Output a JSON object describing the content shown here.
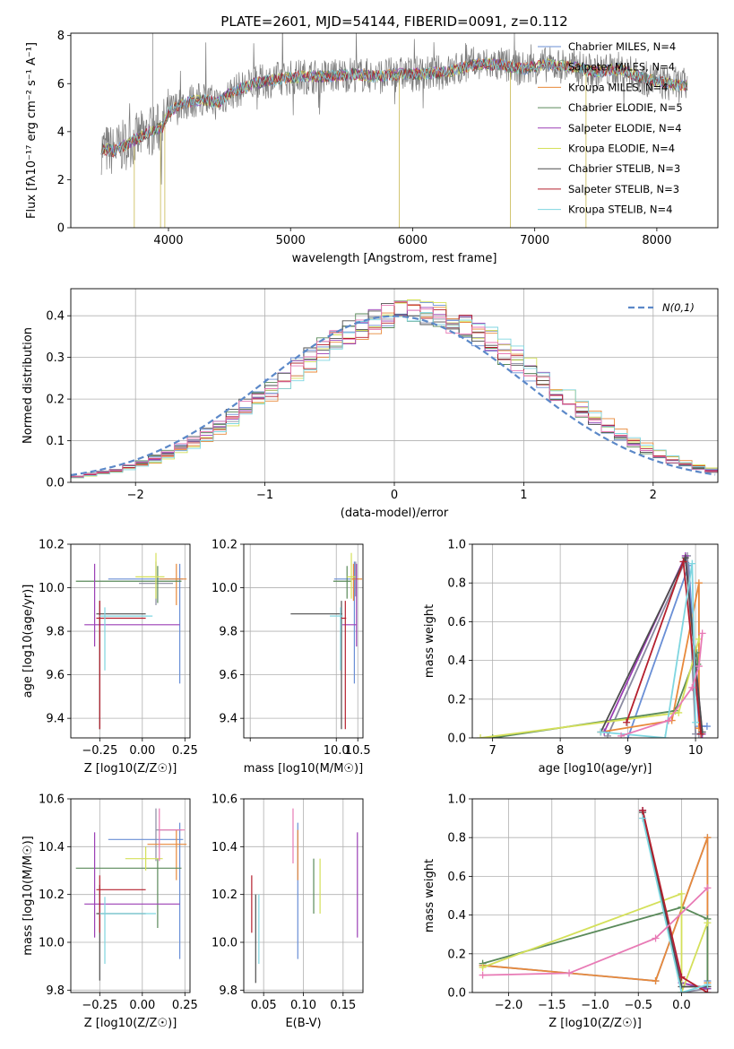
{
  "figure_title": "PLATE=2601, MJD=54144, FIBERID=0091, z=0.112",
  "model_colors": [
    "#6a8fd6",
    "#8a8aa0",
    "#e8893a",
    "#5a8a5a",
    "#9b3fb5",
    "#d4e05a",
    "#4d4d4d",
    "#b5202e",
    "#7fd6e0"
  ],
  "chart_data": [
    {
      "id": "spectrum",
      "type": "line",
      "title": "PLATE=2601, MJD=54144, FIBERID=0091, z=0.112",
      "xlabel": "wavelength [Angstrom, rest frame]",
      "ylabel": "Flux [fλ10⁻¹⁷ erg cm⁻² s⁻¹ A⁻¹]",
      "xlim": [
        3200,
        8500
      ],
      "ylim": [
        0,
        8.1
      ],
      "xticks": [
        4000,
        5000,
        6000,
        7000,
        8000
      ],
      "yticks": [
        0,
        2,
        4,
        6,
        8
      ],
      "grid": false,
      "legend_position": "upper-right",
      "series": [
        {
          "name": "Chabrier MILES, N_SSP=4",
          "color": "#6a8fd6"
        },
        {
          "name": "Salpeter MILES, N_SSP=4",
          "color": "#8a8aa0"
        },
        {
          "name": "Kroupa MILES, N_SSP=4",
          "color": "#e8893a"
        },
        {
          "name": "Chabrier ELODIE, N_SSP=5",
          "color": "#5a8a5a"
        },
        {
          "name": "Salpeter ELODIE, N_SSP=4",
          "color": "#9b3fb5"
        },
        {
          "name": "Kroupa ELODIE, N_SSP=4",
          "color": "#d4e05a"
        },
        {
          "name": "Chabrier STELIB, N_SSP=3",
          "color": "#4d4d4d"
        },
        {
          "name": "Salpeter STELIB, N_SSP=3",
          "color": "#b5202e"
        },
        {
          "name": "Kroupa STELIB, N_SSP=4",
          "color": "#7fd6e0"
        }
      ],
      "model_continuum": {
        "x": [
          3450,
          3550,
          3700,
          3850,
          3950,
          4000,
          4100,
          4200,
          4300,
          4400,
          4500,
          4700,
          4900,
          5100,
          5300,
          5500,
          5700,
          5900,
          6100,
          6300,
          6500,
          6700,
          6900,
          7100,
          7300,
          7500,
          7700,
          7900,
          8100,
          8250
        ],
        "y": [
          3.3,
          3.2,
          3.6,
          4.0,
          4.2,
          4.8,
          5.1,
          5.3,
          5.3,
          5.2,
          5.6,
          6.0,
          6.2,
          6.3,
          6.3,
          6.4,
          6.3,
          6.4,
          6.4,
          6.5,
          6.8,
          6.8,
          6.6,
          6.8,
          6.7,
          6.5,
          6.6,
          6.2,
          6.0,
          5.9
        ]
      }
    },
    {
      "id": "residuals",
      "type": "histogram",
      "xlabel": "(data-model)/error",
      "ylabel": "Normed distribution",
      "xlim": [
        -2.5,
        2.5
      ],
      "ylim": [
        0,
        0.465
      ],
      "xticks": [
        -2,
        -1,
        0,
        1,
        2
      ],
      "yticks": [
        0.0,
        0.1,
        0.2,
        0.3,
        0.4
      ],
      "grid": true,
      "legend_position": "upper-right",
      "legend_label": "N(0,1)",
      "normal_curve": {
        "mean": 0,
        "sigma": 1,
        "style": "dashed",
        "color": "#5b88c8"
      },
      "bin_width": 0.1
    },
    {
      "id": "age_vs_Z",
      "type": "errorbar",
      "xlabel": "Z [log10(Z/Z☉)]",
      "ylabel": "age [log10(age/yr)]",
      "xlim": [
        -0.42,
        0.28
      ],
      "ylim": [
        9.31,
        10.2
      ],
      "xticks": [
        -0.25,
        0.0,
        0.25
      ],
      "yticks": [
        9.4,
        9.6,
        9.8,
        10.0,
        10.2
      ],
      "grid": true,
      "points": [
        {
          "model": 0,
          "x": 0.22,
          "y": 10.04,
          "xerr": [
            0.42,
            0.02
          ],
          "yerr": [
            0.48,
            0.07
          ]
        },
        {
          "model": 1,
          "x": 0.08,
          "y": 10.02,
          "xerr": [
            0.1,
            0.1
          ],
          "yerr": [
            0.1,
            0.1
          ]
        },
        {
          "model": 2,
          "x": 0.2,
          "y": 10.04,
          "xerr": [
            0.1,
            0.06
          ],
          "yerr": [
            0.12,
            0.07
          ]
        },
        {
          "model": 3,
          "x": 0.09,
          "y": 10.03,
          "xerr": [
            0.48,
            0.14
          ],
          "yerr": [
            0.1,
            0.07
          ]
        },
        {
          "model": 4,
          "x": -0.28,
          "y": 9.83,
          "xerr": [
            0.06,
            0.5
          ],
          "yerr": [
            0.1,
            0.28
          ]
        },
        {
          "model": 5,
          "x": 0.08,
          "y": 10.05,
          "xerr": [
            0.12,
            0.05
          ],
          "yerr": [
            0.1,
            0.11
          ]
        },
        {
          "model": 6,
          "x": -0.25,
          "y": 9.88,
          "xerr": [
            0.02,
            0.27
          ],
          "yerr": [
            0.53,
            0.06
          ]
        },
        {
          "model": 7,
          "x": -0.25,
          "y": 9.86,
          "xerr": [
            0.02,
            0.27
          ],
          "yerr": [
            0.51,
            0.08
          ]
        },
        {
          "model": 8,
          "x": -0.22,
          "y": 9.87,
          "xerr": [
            0.03,
            0.28
          ],
          "yerr": [
            0.25,
            0.04
          ]
        }
      ]
    },
    {
      "id": "age_vs_mass",
      "type": "errorbar",
      "xlabel": "mass [log10(M/M☉)]",
      "ylabel": "",
      "xlim": [
        7.85,
        10.62
      ],
      "ylim": [
        9.31,
        10.2
      ],
      "xticks": [
        8.0,
        10.0,
        10.5
      ],
      "xticklabels": [
        "",
        "10.0",
        "10.5"
      ],
      "yticks": [
        9.4,
        9.6,
        9.8,
        10.0,
        10.2
      ],
      "grid": true,
      "points": [
        {
          "model": 0,
          "x": 10.42,
          "y": 10.04,
          "xerr": [
            0.47,
            0.1
          ],
          "yerr": [
            0.48,
            0.08
          ]
        },
        {
          "model": 1,
          "x": 10.45,
          "y": 10.04,
          "xerr": [
            0.05,
            0.05
          ],
          "yerr": [
            0.08,
            0.08
          ]
        },
        {
          "model": 2,
          "x": 10.4,
          "y": 10.04,
          "xerr": [
            0.05,
            0.2
          ],
          "yerr": [
            0.1,
            0.07
          ]
        },
        {
          "model": 3,
          "x": 10.25,
          "y": 10.03,
          "xerr": [
            0.32,
            0.1
          ],
          "yerr": [
            0.08,
            0.07
          ]
        },
        {
          "model": 4,
          "x": 10.47,
          "y": 9.83,
          "xerr": [
            0.33,
            0.01
          ],
          "yerr": [
            0.1,
            0.28
          ]
        },
        {
          "model": 5,
          "x": 10.35,
          "y": 10.05,
          "xerr": [
            0.1,
            0.1
          ],
          "yerr": [
            0.1,
            0.11
          ]
        },
        {
          "model": 6,
          "x": 10.12,
          "y": 9.88,
          "xerr": [
            1.18,
            0.02
          ],
          "yerr": [
            0.53,
            0.06
          ]
        },
        {
          "model": 7,
          "x": 10.21,
          "y": 9.86,
          "xerr": [
            0.1,
            0.02
          ],
          "yerr": [
            0.51,
            0.08
          ]
        },
        {
          "model": 8,
          "x": 10.1,
          "y": 9.87,
          "xerr": [
            0.25,
            0.05
          ],
          "yerr": [
            0.25,
            0.04
          ]
        }
      ]
    },
    {
      "id": "massweight_vs_age",
      "type": "line",
      "xlabel": "age [log10(age/yr)]",
      "ylabel": "mass weight",
      "xlim": [
        6.7,
        10.33
      ],
      "ylim": [
        0,
        1.0
      ],
      "xticks": [
        7,
        8,
        9,
        10
      ],
      "yticks": [
        0.0,
        0.2,
        0.4,
        0.6,
        0.8,
        1.0
      ],
      "grid": true,
      "series": [
        {
          "model": 0,
          "x": [
            9.0,
            9.9,
            10.05,
            10.17
          ],
          "y": [
            0.0,
            0.89,
            0.06,
            0.06
          ]
        },
        {
          "model": 1,
          "x": [
            8.7,
            9.88,
            10.0,
            10.05
          ],
          "y": [
            0.01,
            0.94,
            0.02,
            0.02
          ]
        },
        {
          "model": 2,
          "x": [
            8.6,
            9.65,
            10.05,
            10.05
          ],
          "y": [
            0.03,
            0.09,
            0.8,
            0.05
          ]
        },
        {
          "model": 3,
          "x": [
            7.0,
            9.7,
            10.02,
            10.03
          ],
          "y": [
            0.0,
            0.14,
            0.44,
            0.38
          ]
        },
        {
          "model": 4,
          "x": [
            8.65,
            9.85,
            10.1
          ],
          "y": [
            0.03,
            0.94,
            0.02
          ]
        },
        {
          "model": 5,
          "x": [
            6.82,
            9.75,
            10.05
          ],
          "y": [
            0.0,
            0.13,
            0.51
          ]
        },
        {
          "model": 6,
          "x": [
            8.6,
            9.85,
            10.1
          ],
          "y": [
            0.03,
            0.93,
            0.03
          ]
        },
        {
          "model": 7,
          "x": [
            8.98,
            9.82,
            10.08
          ],
          "y": [
            0.08,
            0.91,
            0.02
          ]
        },
        {
          "model": 8,
          "x": [
            8.6,
            9.55,
            9.95,
            10.0
          ],
          "y": [
            0.03,
            0.0,
            0.9,
            0.08
          ]
        },
        {
          "model": 9,
          "x": [
            8.9,
            9.6,
            9.95,
            10.05,
            10.1
          ],
          "y": [
            0.01,
            0.09,
            0.26,
            0.37,
            0.54
          ]
        }
      ]
    },
    {
      "id": "mass_vs_Z",
      "type": "errorbar",
      "xlabel": "Z [log10(Z/Z☉)]",
      "ylabel": "mass [log10(M/M☉)]",
      "xlim": [
        -0.42,
        0.28
      ],
      "ylim": [
        9.79,
        10.6
      ],
      "xticks": [
        -0.25,
        0.0,
        0.25
      ],
      "yticks": [
        9.8,
        10.0,
        10.2,
        10.4,
        10.6
      ],
      "grid": true,
      "points": [
        {
          "model": 0,
          "x": 0.22,
          "y": 10.43,
          "xerr": [
            0.42,
            0.02
          ],
          "yerr": [
            0.5,
            0.07
          ]
        },
        {
          "model": 1,
          "x": 0.08,
          "y": 10.47,
          "xerr": [
            0.0,
            0.15
          ],
          "yerr": [
            0.13,
            0.09
          ]
        },
        {
          "model": 2,
          "x": 0.2,
          "y": 10.41,
          "xerr": [
            0.17,
            0.06
          ],
          "yerr": [
            0.15,
            0.06
          ]
        },
        {
          "model": 3,
          "x": 0.09,
          "y": 10.31,
          "xerr": [
            0.48,
            0.14
          ],
          "yerr": [
            0.25,
            0.04
          ]
        },
        {
          "model": 4,
          "x": -0.28,
          "y": 10.16,
          "xerr": [
            0.06,
            0.5
          ],
          "yerr": [
            0.14,
            0.3
          ]
        },
        {
          "model": 5,
          "x": 0.02,
          "y": 10.35,
          "xerr": [
            0.12,
            0.1
          ],
          "yerr": [
            0.05,
            0.05
          ]
        },
        {
          "model": 6,
          "x": -0.25,
          "y": 10.12,
          "xerr": [
            0.02,
            0.27
          ],
          "yerr": [
            0.28,
            0.12
          ]
        },
        {
          "model": 7,
          "x": -0.25,
          "y": 10.22,
          "xerr": [
            0.02,
            0.27
          ],
          "yerr": [
            0.18,
            0.06
          ]
        },
        {
          "model": 8,
          "x": -0.22,
          "y": 10.12,
          "xerr": [
            0.03,
            0.3
          ],
          "yerr": [
            0.21,
            0.07
          ]
        },
        {
          "model": 9,
          "x": 0.1,
          "y": 10.47,
          "xerr": [
            0.0,
            0.15
          ],
          "yerr": [
            0.13,
            0.09
          ]
        }
      ]
    },
    {
      "id": "mass_vs_EBV",
      "type": "errorbar",
      "xlabel": "E(B-V)",
      "ylabel": "",
      "xlim": [
        0.025,
        0.175
      ],
      "ylim": [
        9.79,
        10.6
      ],
      "xticks": [
        0.05,
        0.1,
        0.15
      ],
      "yticks": [
        9.8,
        10.0,
        10.2,
        10.4,
        10.6
      ],
      "grid": true,
      "points": [
        {
          "model": 0,
          "x": 0.093,
          "y": 10.43,
          "xerr": [
            0,
            0
          ],
          "yerr": [
            0.5,
            0.07
          ]
        },
        {
          "model": 2,
          "x": 0.093,
          "y": 10.41,
          "xerr": [
            0,
            0
          ],
          "yerr": [
            0.15,
            0.06
          ]
        },
        {
          "model": 3,
          "x": 0.113,
          "y": 10.22,
          "xerr": [
            0,
            0
          ],
          "yerr": [
            0.1,
            0.13
          ]
        },
        {
          "model": 4,
          "x": 0.168,
          "y": 10.16,
          "xerr": [
            0,
            0
          ],
          "yerr": [
            0.14,
            0.3
          ]
        },
        {
          "model": 5,
          "x": 0.121,
          "y": 10.28,
          "xerr": [
            0,
            0
          ],
          "yerr": [
            0.16,
            0.07
          ]
        },
        {
          "model": 6,
          "x": 0.04,
          "y": 10.12,
          "xerr": [
            0,
            0
          ],
          "yerr": [
            0.29,
            0.08
          ]
        },
        {
          "model": 7,
          "x": 0.035,
          "y": 10.22,
          "xerr": [
            0,
            0
          ],
          "yerr": [
            0.18,
            0.06
          ]
        },
        {
          "model": 8,
          "x": 0.044,
          "y": 10.1,
          "xerr": [
            0,
            0
          ],
          "yerr": [
            0.19,
            0.1
          ]
        },
        {
          "model": 9,
          "x": 0.087,
          "y": 10.43,
          "xerr": [
            0,
            0
          ],
          "yerr": [
            0.1,
            0.13
          ]
        }
      ]
    },
    {
      "id": "massweight_vs_Z",
      "type": "line",
      "xlabel": "Z [log10(Z/Z☉)]",
      "ylabel": "mass weight",
      "xlim": [
        -2.42,
        0.42
      ],
      "ylim": [
        0,
        1.0
      ],
      "xticks": [
        -2.0,
        -1.5,
        -1.0,
        -0.5,
        0.0
      ],
      "yticks": [
        0.0,
        0.2,
        0.4,
        0.6,
        0.8,
        1.0
      ],
      "grid": true,
      "series": [
        {
          "model": 0,
          "x": [
            -2.3,
            -0.3,
            0.3,
            0.3
          ],
          "y": [
            0.14,
            0.06,
            0.8,
            0.06
          ]
        },
        {
          "model": 1,
          "x": [
            -0.45,
            0.0,
            0.3
          ],
          "y": [
            0.94,
            0.0,
            0.02
          ]
        },
        {
          "model": 2,
          "x": [
            -2.3,
            -0.3,
            0.3,
            0.3
          ],
          "y": [
            0.14,
            0.06,
            0.8,
            0.05
          ]
        },
        {
          "model": 3,
          "x": [
            -2.3,
            0.0,
            0.3,
            0.3
          ],
          "y": [
            0.15,
            0.44,
            0.38,
            0.03
          ]
        },
        {
          "model": 4,
          "x": [
            -0.45,
            0.0,
            0.3
          ],
          "y": [
            0.94,
            0.05,
            0.02
          ]
        },
        {
          "model": 5,
          "x": [
            -2.3,
            0.0,
            0.0,
            0.3
          ],
          "y": [
            0.13,
            0.51,
            0.0,
            0.36
          ]
        },
        {
          "model": 6,
          "x": [
            -0.45,
            0.0,
            0.3
          ],
          "y": [
            0.93,
            0.03,
            0.03
          ]
        },
        {
          "model": 7,
          "x": [
            -0.45,
            0.0,
            0.3
          ],
          "y": [
            0.94,
            0.08,
            0.0
          ]
        },
        {
          "model": 8,
          "x": [
            -0.45,
            0.0,
            0.3
          ],
          "y": [
            0.9,
            0.0,
            0.04
          ]
        },
        {
          "model": 9,
          "x": [
            -2.3,
            -1.3,
            -0.3,
            0.3
          ],
          "y": [
            0.09,
            0.1,
            0.28,
            0.54
          ]
        }
      ]
    }
  ]
}
